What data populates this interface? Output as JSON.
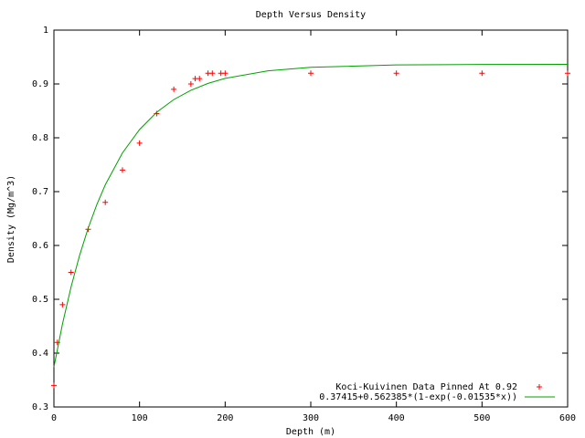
{
  "chart_data": {
    "type": "scatter",
    "title": "Depth Versus Density",
    "x_label": "Depth (m)",
    "y_label": "Density (Mg/m^3)",
    "xlim": [
      0,
      600
    ],
    "ylim": [
      0.3,
      1
    ],
    "xticks": [
      0,
      100,
      200,
      300,
      400,
      500,
      600
    ],
    "yticks": [
      0.3,
      0.4,
      0.5,
      0.6,
      0.7,
      0.8,
      0.9,
      1
    ],
    "legend": "bottom-right",
    "grid": false,
    "series": [
      {
        "name": "Koci-Kuivinen Data Pinned At 0.92",
        "color": "#ff0000",
        "style": "points",
        "x": [
          0,
          4,
          10,
          20,
          40,
          60,
          80,
          100,
          120,
          140,
          160,
          165,
          170,
          180,
          185,
          195,
          200,
          300,
          400,
          500,
          600
        ],
        "values": [
          0.34,
          0.42,
          0.49,
          0.55,
          0.63,
          0.68,
          0.74,
          0.79,
          0.845,
          0.89,
          0.9,
          0.91,
          0.91,
          0.92,
          0.92,
          0.92,
          0.92,
          0.92,
          0.92,
          0.92,
          0.92
        ]
      },
      {
        "name": "0.37415+0.562385*(1-exp(-0.01535*x))",
        "color": "#00a000",
        "style": "lines",
        "x": [
          0,
          10,
          20,
          30,
          40,
          50,
          60,
          80,
          100,
          120,
          140,
          160,
          180,
          200,
          250,
          300,
          400,
          500,
          600
        ],
        "values": [
          0.3742,
          0.4542,
          0.5228,
          0.5817,
          0.6322,
          0.6755,
          0.7127,
          0.7718,
          0.8153,
          0.8474,
          0.871,
          0.8883,
          0.901,
          0.9104,
          0.9244,
          0.9309,
          0.9353,
          0.9363,
          0.9365
        ]
      }
    ]
  }
}
